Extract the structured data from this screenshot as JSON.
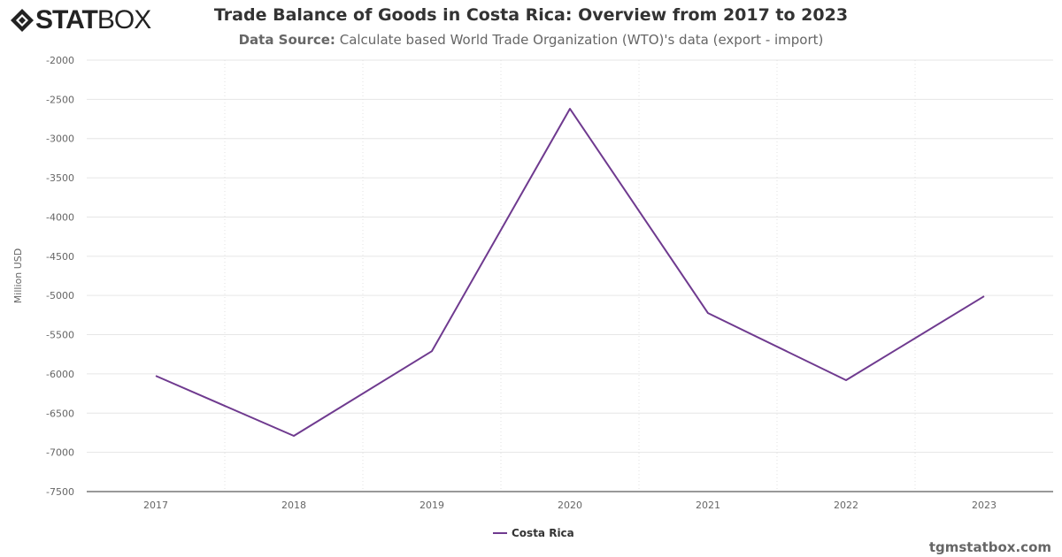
{
  "logo": {
    "text_bold": "STAT",
    "text_light": "BOX"
  },
  "header": {
    "title": "Trade Balance of Goods in Costa Rica: Overview from 2017 to 2023",
    "subtitle_label": "Data Source:",
    "subtitle_text": "Calculate based World Trade Organization (WTO)'s data (export - import)"
  },
  "credit": "tgmstatbox.com",
  "chart_data": {
    "type": "line",
    "title": "Trade Balance of Goods in Costa Rica: Overview from 2017 to 2023",
    "xlabel": "",
    "ylabel": "Million USD",
    "categories": [
      "2017",
      "2018",
      "2019",
      "2020",
      "2021",
      "2022",
      "2023"
    ],
    "series": [
      {
        "name": "Costa Rica",
        "color": "#6f3a8f",
        "values": [
          -6025,
          -6790,
          -5710,
          -2620,
          -5225,
          -6080,
          -5010
        ]
      }
    ],
    "ylim": [
      -7500,
      -2000
    ],
    "yticks": [
      -2000,
      -2500,
      -3000,
      -3500,
      -4000,
      -4500,
      -5000,
      -5500,
      -6000,
      -6500,
      -7000,
      -7500
    ],
    "grid": true,
    "legend": "bottom-center"
  }
}
